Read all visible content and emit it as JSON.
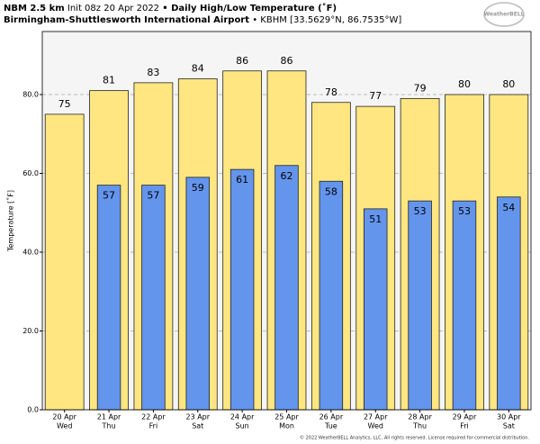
{
  "chart_data": {
    "type": "bar",
    "model": "NBM 2.5 km",
    "init": "Init 08z 20 Apr 2022",
    "title": "• Daily High/Low Temperature (˚F)",
    "location": "Birmingham-Shuttlesworth International Airport",
    "station": "• KBHM [33.5629°N, 86.7535°W]",
    "logo": "WeatherBELL",
    "y_label": "Temperature [˚F]",
    "footer": "© 2022 WeatherBELL Analytics, LLC. All rights reserved. License required for commercial distribution.",
    "categories": [
      "20 Apr",
      "21 Apr",
      "22 Apr",
      "23 Apr",
      "24 Apr",
      "25 Apr",
      "26 Apr",
      "27 Apr",
      "28 Apr",
      "29 Apr",
      "30 Apr"
    ],
    "weekdays": [
      "Wed",
      "Thu",
      "Fri",
      "Sat",
      "Sun",
      "Mon",
      "Tue",
      "Wed",
      "Thu",
      "Fri",
      "Sat"
    ],
    "series": [
      {
        "name": "High",
        "color": "#ffe680",
        "values": [
          75,
          81,
          83,
          84,
          86,
          86,
          78,
          77,
          79,
          80,
          80
        ]
      },
      {
        "name": "Low",
        "color": "#6495ed",
        "values": [
          null,
          57,
          57,
          59,
          61,
          62,
          58,
          51,
          53,
          53,
          54
        ]
      }
    ],
    "ylim": [
      0,
      96
    ],
    "yticks": [
      {
        "value": 0,
        "label": "0.0"
      },
      {
        "value": 20,
        "label": "20.0"
      },
      {
        "value": 40,
        "label": "40.0"
      },
      {
        "value": 60,
        "label": "60.0"
      },
      {
        "value": 80,
        "label": "80.0"
      }
    ],
    "grid": true
  }
}
